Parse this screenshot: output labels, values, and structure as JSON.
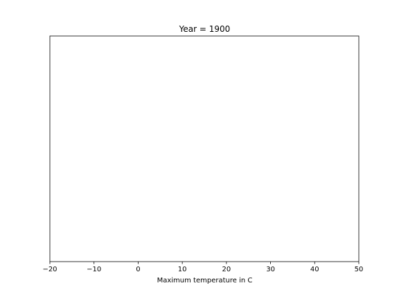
{
  "chart_data": {
    "type": "scatter",
    "title": "Year = 1900",
    "xlabel": "Maximum temperature in C",
    "ylabel": "",
    "xlim": [
      -20,
      50
    ],
    "xticks": [
      -20,
      -10,
      0,
      10,
      20,
      30,
      40,
      50
    ],
    "xtick_labels": [
      "−20",
      "−10",
      "0",
      "10",
      "20",
      "30",
      "40",
      "50"
    ],
    "yticks_visible": false,
    "grid": false,
    "series": [],
    "colors": {
      "axes": "#000000",
      "background": "#ffffff"
    }
  }
}
